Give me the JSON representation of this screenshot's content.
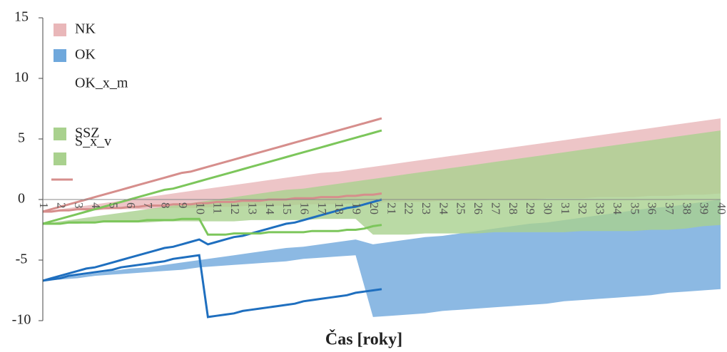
{
  "chart_data": {
    "type": "band",
    "xlabel": "Čas [roky]",
    "categories": [
      1,
      2,
      3,
      4,
      5,
      6,
      7,
      8,
      9,
      10,
      11,
      12,
      13,
      14,
      15,
      16,
      17,
      18,
      19,
      20,
      21,
      22,
      23,
      24,
      25,
      26,
      27,
      28,
      29,
      30,
      31,
      32,
      33,
      34,
      35,
      36,
      37,
      38,
      39,
      40
    ],
    "ylim": [
      -10,
      15
    ],
    "yticks": [
      -10,
      -5,
      0,
      5,
      10,
      15
    ],
    "series": [
      {
        "name": "NK",
        "color": "#e9b7b9",
        "line_color": "#d68e8c",
        "low": [
          -1,
          -1,
          -0.9,
          -0.9,
          -0.8,
          -0.8,
          -0.8,
          -0.7,
          -0.7,
          -0.7,
          -0.6,
          -0.6,
          -0.5,
          -0.5,
          -0.5,
          -0.4,
          -0.4,
          -0.4,
          -0.3,
          -0.3,
          -0.2,
          -0.2,
          -0.2,
          -0.1,
          -0.1,
          -0.1,
          0,
          0,
          0,
          0.1,
          0.1,
          0.1,
          0.2,
          0.2,
          0.2,
          0.3,
          0.3,
          0.4,
          0.4,
          0.5
        ],
        "high": [
          -1,
          -0.8,
          -0.6,
          -0.4,
          -0.2,
          0,
          0.2,
          0.4,
          0.6,
          0.8,
          1.0,
          1.2,
          1.4,
          1.6,
          1.8,
          2.0,
          2.2,
          2.3,
          2.5,
          2.7,
          2.9,
          3.1,
          3.3,
          3.5,
          3.7,
          3.9,
          4.1,
          4.3,
          4.5,
          4.7,
          4.9,
          5.1,
          5.3,
          5.5,
          5.7,
          5.9,
          6.1,
          6.3,
          6.5,
          6.7
        ]
      },
      {
        "name": "OK",
        "color": "#6fa8dc",
        "line_color": "#1f6fbf",
        "low": [
          -6.7,
          -6.6,
          -6.5,
          -6.3,
          -6.2,
          -6.1,
          -6,
          -5.9,
          -5.8,
          -5.6,
          -5.5,
          -5.4,
          -5.3,
          -5.2,
          -5.1,
          -4.9,
          -4.8,
          -4.7,
          -4.6,
          -9.7,
          -9.6,
          -9.5,
          -9.4,
          -9.2,
          -9.1,
          -9,
          -8.9,
          -8.8,
          -8.7,
          -8.6,
          -8.4,
          -8.3,
          -8.2,
          -8.1,
          -8,
          -7.9,
          -7.7,
          -7.6,
          -7.5,
          -7.4
        ],
        "high": [
          -6.7,
          -6.5,
          -6.3,
          -6.1,
          -5.9,
          -5.7,
          -5.6,
          -5.4,
          -5.2,
          -5,
          -4.8,
          -4.6,
          -4.4,
          -4.2,
          -4,
          -3.9,
          -3.7,
          -3.5,
          -3.3,
          -3.7,
          -3.5,
          -3.3,
          -3.1,
          -3,
          -2.8,
          -2.6,
          -2.4,
          -2.2,
          -2,
          -1.9,
          -1.7,
          -1.5,
          -1.3,
          -1.1,
          -0.9,
          -0.7,
          -0.6,
          -0.4,
          -0.2,
          0
        ]
      },
      {
        "name": "SSZ",
        "color": "#a9d18e",
        "line_color": "#7cc65b",
        "low": [
          -2,
          -2,
          -2,
          -1.9,
          -1.9,
          -1.9,
          -1.9,
          -1.8,
          -1.8,
          -1.8,
          -1.8,
          -1.8,
          -1.7,
          -1.7,
          -1.7,
          -1.7,
          -1.6,
          -1.6,
          -1.6,
          -2.9,
          -2.9,
          -2.9,
          -2.8,
          -2.8,
          -2.8,
          -2.8,
          -2.7,
          -2.7,
          -2.7,
          -2.7,
          -2.7,
          -2.6,
          -2.6,
          -2.6,
          -2.6,
          -2.5,
          -2.5,
          -2.4,
          -2.2,
          -2.1
        ],
        "high": [
          -2,
          -1.8,
          -1.6,
          -1.4,
          -1.2,
          -1,
          -0.8,
          -0.6,
          -0.4,
          -0.2,
          0,
          0.2,
          0.4,
          0.6,
          0.8,
          0.9,
          1.1,
          1.3,
          1.5,
          1.7,
          1.9,
          2.1,
          2.3,
          2.5,
          2.7,
          2.9,
          3.1,
          3.3,
          3.5,
          3.7,
          3.9,
          4.1,
          4.3,
          4.5,
          4.7,
          4.9,
          5.1,
          5.3,
          5.5,
          5.7
        ]
      }
    ],
    "legend_labels": [
      "OK_x_m",
      "S_x_v"
    ]
  }
}
